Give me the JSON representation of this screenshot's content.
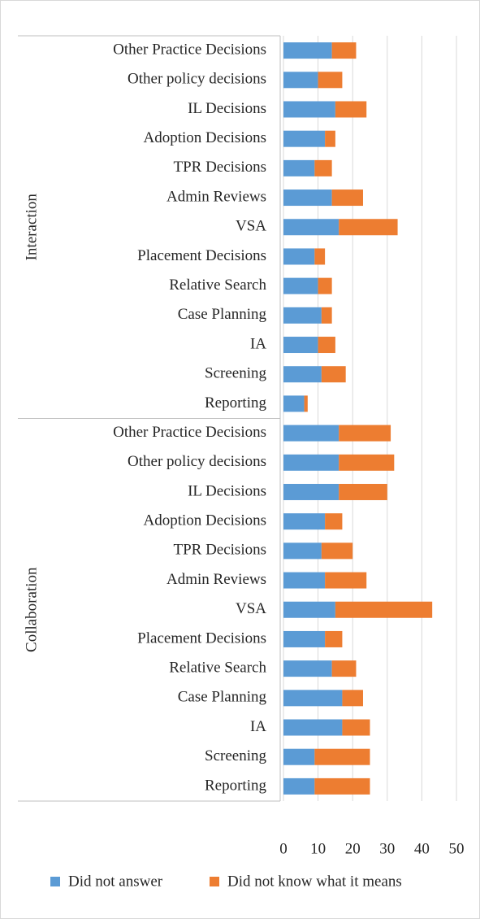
{
  "chart_data": {
    "type": "bar",
    "orientation": "horizontal",
    "stacked": true,
    "series": [
      {
        "name": "Did not answer",
        "color": "#5b9bd5"
      },
      {
        "name": "Did not know what it means",
        "color": "#ed7d31"
      }
    ],
    "groups": [
      {
        "name": "Interaction",
        "categories": [
          "Other Practice Decisions",
          "Other policy decisions",
          "IL Decisions",
          "Adoption Decisions",
          "TPR Decisions",
          "Admin Reviews",
          "VSA",
          "Placement Decisions",
          "Relative Search",
          "Case Planning",
          "IA",
          "Screening",
          "Reporting"
        ],
        "values": [
          [
            14,
            10,
            15,
            12,
            9,
            14,
            16,
            9,
            10,
            11,
            10,
            11,
            6
          ],
          [
            7,
            7,
            9,
            3,
            5,
            9,
            17,
            3,
            4,
            3,
            5,
            7,
            1
          ]
        ]
      },
      {
        "name": "Collaboration",
        "categories": [
          "Other Practice Decisions",
          "Other policy decisions",
          "IL Decisions",
          "Adoption Decisions",
          "TPR Decisions",
          "Admin Reviews",
          "VSA",
          "Placement Decisions",
          "Relative Search",
          "Case Planning",
          "IA",
          "Screening",
          "Reporting"
        ],
        "values": [
          [
            16,
            16,
            16,
            12,
            11,
            12,
            15,
            12,
            14,
            17,
            17,
            9,
            9
          ],
          [
            15,
            16,
            14,
            5,
            9,
            12,
            28,
            5,
            7,
            6,
            8,
            16,
            16
          ]
        ]
      }
    ],
    "xlim": [
      0,
      50
    ],
    "xticks": [
      0,
      10,
      20,
      30,
      40,
      50
    ],
    "grid": true,
    "legend": "bottom"
  }
}
